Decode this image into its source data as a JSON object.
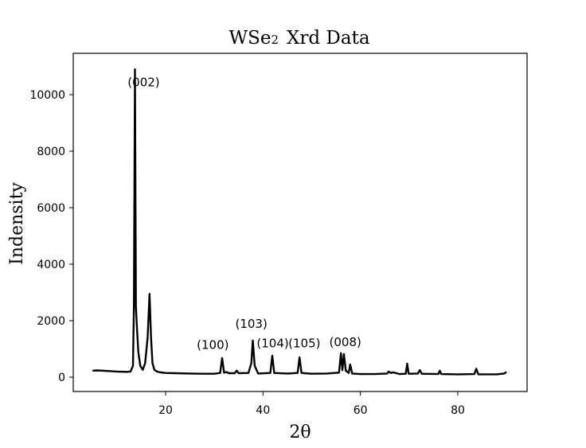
{
  "chart_data": {
    "type": "line",
    "title": "WSe₂  Xrd Data",
    "title_parts": {
      "main": "WSe",
      "sub": "2",
      "rest": "Xrd Data"
    },
    "xlabel": "2θ",
    "ylabel": "Indensity",
    "xlim": [
      1,
      94
    ],
    "ylim": [
      -500,
      11000
    ],
    "xticks": [
      20,
      40,
      60,
      80
    ],
    "yticks": [
      0,
      2000,
      4000,
      6000,
      8000,
      10000
    ],
    "grid": false,
    "legend": null,
    "line_color": "#000000",
    "series": [
      {
        "name": "WSe2",
        "x": [
          5,
          6,
          8,
          10,
          12,
          12.8,
          13.3,
          13.5,
          13.7,
          13.9,
          14.1,
          14.4,
          14.8,
          15.3,
          15.8,
          16.3,
          16.7,
          17.0,
          17.3,
          17.7,
          18.2,
          19,
          20,
          22,
          25,
          28,
          30,
          31.2,
          31.6,
          32.0,
          32.5,
          33.0,
          34.2,
          34.6,
          35.0,
          37.0,
          37.6,
          37.9,
          38.3,
          39,
          41.5,
          41.9,
          42.3,
          45,
          47.1,
          47.5,
          47.9,
          50,
          53,
          55.6,
          56.0,
          56.3,
          56.6,
          57.0,
          57.6,
          57.9,
          58.3,
          60,
          63,
          65.5,
          65.8,
          66.2,
          66.8,
          68,
          69.3,
          69.6,
          69.9,
          71.8,
          72.2,
          72.6,
          76.0,
          76.3,
          76.6,
          80,
          83.4,
          83.8,
          84.2,
          88,
          89.5,
          90
        ],
        "values": [
          230,
          240,
          220,
          200,
          190,
          200,
          400,
          2500,
          10900,
          2500,
          1800,
          900,
          400,
          260,
          500,
          1400,
          2950,
          1400,
          500,
          260,
          200,
          170,
          150,
          140,
          130,
          120,
          120,
          150,
          680,
          160,
          180,
          140,
          140,
          230,
          140,
          150,
          500,
          1300,
          400,
          130,
          150,
          760,
          150,
          130,
          150,
          700,
          150,
          120,
          130,
          160,
          850,
          250,
          820,
          230,
          150,
          450,
          130,
          110,
          110,
          130,
          200,
          150,
          170,
          110,
          120,
          480,
          120,
          130,
          250,
          120,
          110,
          230,
          110,
          100,
          110,
          300,
          100,
          100,
          130,
          180
        ]
      }
    ],
    "annotations": [
      {
        "text": "(002)",
        "x": 15.5,
        "y": 10300
      },
      {
        "text": "(100)",
        "x": 29.7,
        "y": 1000
      },
      {
        "text": "(103)",
        "x": 37.6,
        "y": 1750
      },
      {
        "text": "(104)",
        "x": 42.0,
        "y": 1050
      },
      {
        "text": "(105)",
        "x": 48.5,
        "y": 1050
      },
      {
        "text": "(008)",
        "x": 56.9,
        "y": 1100
      }
    ]
  }
}
